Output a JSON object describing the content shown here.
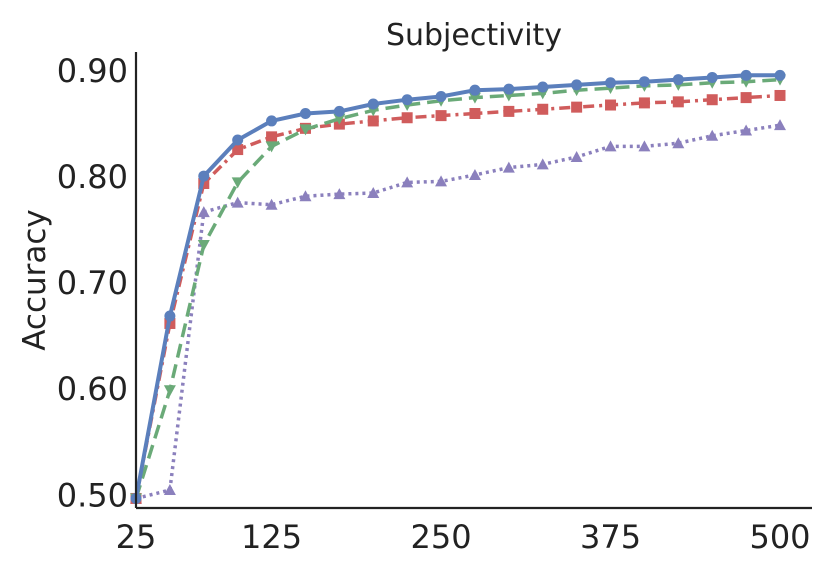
{
  "chart_data": {
    "type": "line",
    "title": "Subjectivity",
    "xlabel": "",
    "ylabel": "Accuracy",
    "xlim": [
      25,
      500
    ],
    "ylim": [
      0.488,
      0.918
    ],
    "x_ticks": [
      25,
      125,
      250,
      375,
      500
    ],
    "x_tick_labels": [
      "25",
      "125",
      "250",
      "375",
      "500"
    ],
    "y_ticks": [
      0.5,
      0.6,
      0.7,
      0.8,
      0.9
    ],
    "y_tick_labels": [
      "0.50",
      "0.60",
      "0.70",
      "0.80",
      "0.90"
    ],
    "grid": false,
    "x": [
      25,
      50,
      75,
      100,
      125,
      150,
      175,
      200,
      225,
      250,
      275,
      300,
      325,
      350,
      375,
      400,
      425,
      450,
      475,
      500
    ],
    "series": [
      {
        "name": "blue-solid-circle",
        "color": "#5b7fbc",
        "dash": "solid",
        "marker": "circle",
        "values": [
          0.497,
          0.669,
          0.801,
          0.835,
          0.853,
          0.86,
          0.862,
          0.869,
          0.873,
          0.876,
          0.882,
          0.883,
          0.885,
          0.887,
          0.889,
          0.89,
          0.892,
          0.894,
          0.896,
          0.896
        ]
      },
      {
        "name": "green-dashed-triangle-down",
        "color": "#6aaa78",
        "dash": "dashed",
        "marker": "triangle-down",
        "values": [
          0.497,
          0.599,
          0.736,
          0.795,
          0.829,
          0.845,
          0.855,
          0.863,
          0.868,
          0.872,
          0.875,
          0.877,
          0.879,
          0.882,
          0.884,
          0.886,
          0.887,
          0.889,
          0.89,
          0.892
        ]
      },
      {
        "name": "red-dashdot-square",
        "color": "#d05c5c",
        "dash": "dashdot",
        "marker": "square",
        "values": [
          0.497,
          0.662,
          0.794,
          0.826,
          0.838,
          0.846,
          0.85,
          0.853,
          0.856,
          0.858,
          0.86,
          0.862,
          0.864,
          0.866,
          0.868,
          0.87,
          0.871,
          0.873,
          0.875,
          0.877
        ]
      },
      {
        "name": "purple-dotted-triangle-up",
        "color": "#8b80bd",
        "dash": "dotted",
        "marker": "triangle-up",
        "values": [
          0.497,
          0.505,
          0.767,
          0.776,
          0.774,
          0.782,
          0.784,
          0.785,
          0.795,
          0.796,
          0.802,
          0.809,
          0.812,
          0.819,
          0.829,
          0.829,
          0.832,
          0.839,
          0.844,
          0.849
        ]
      }
    ]
  }
}
